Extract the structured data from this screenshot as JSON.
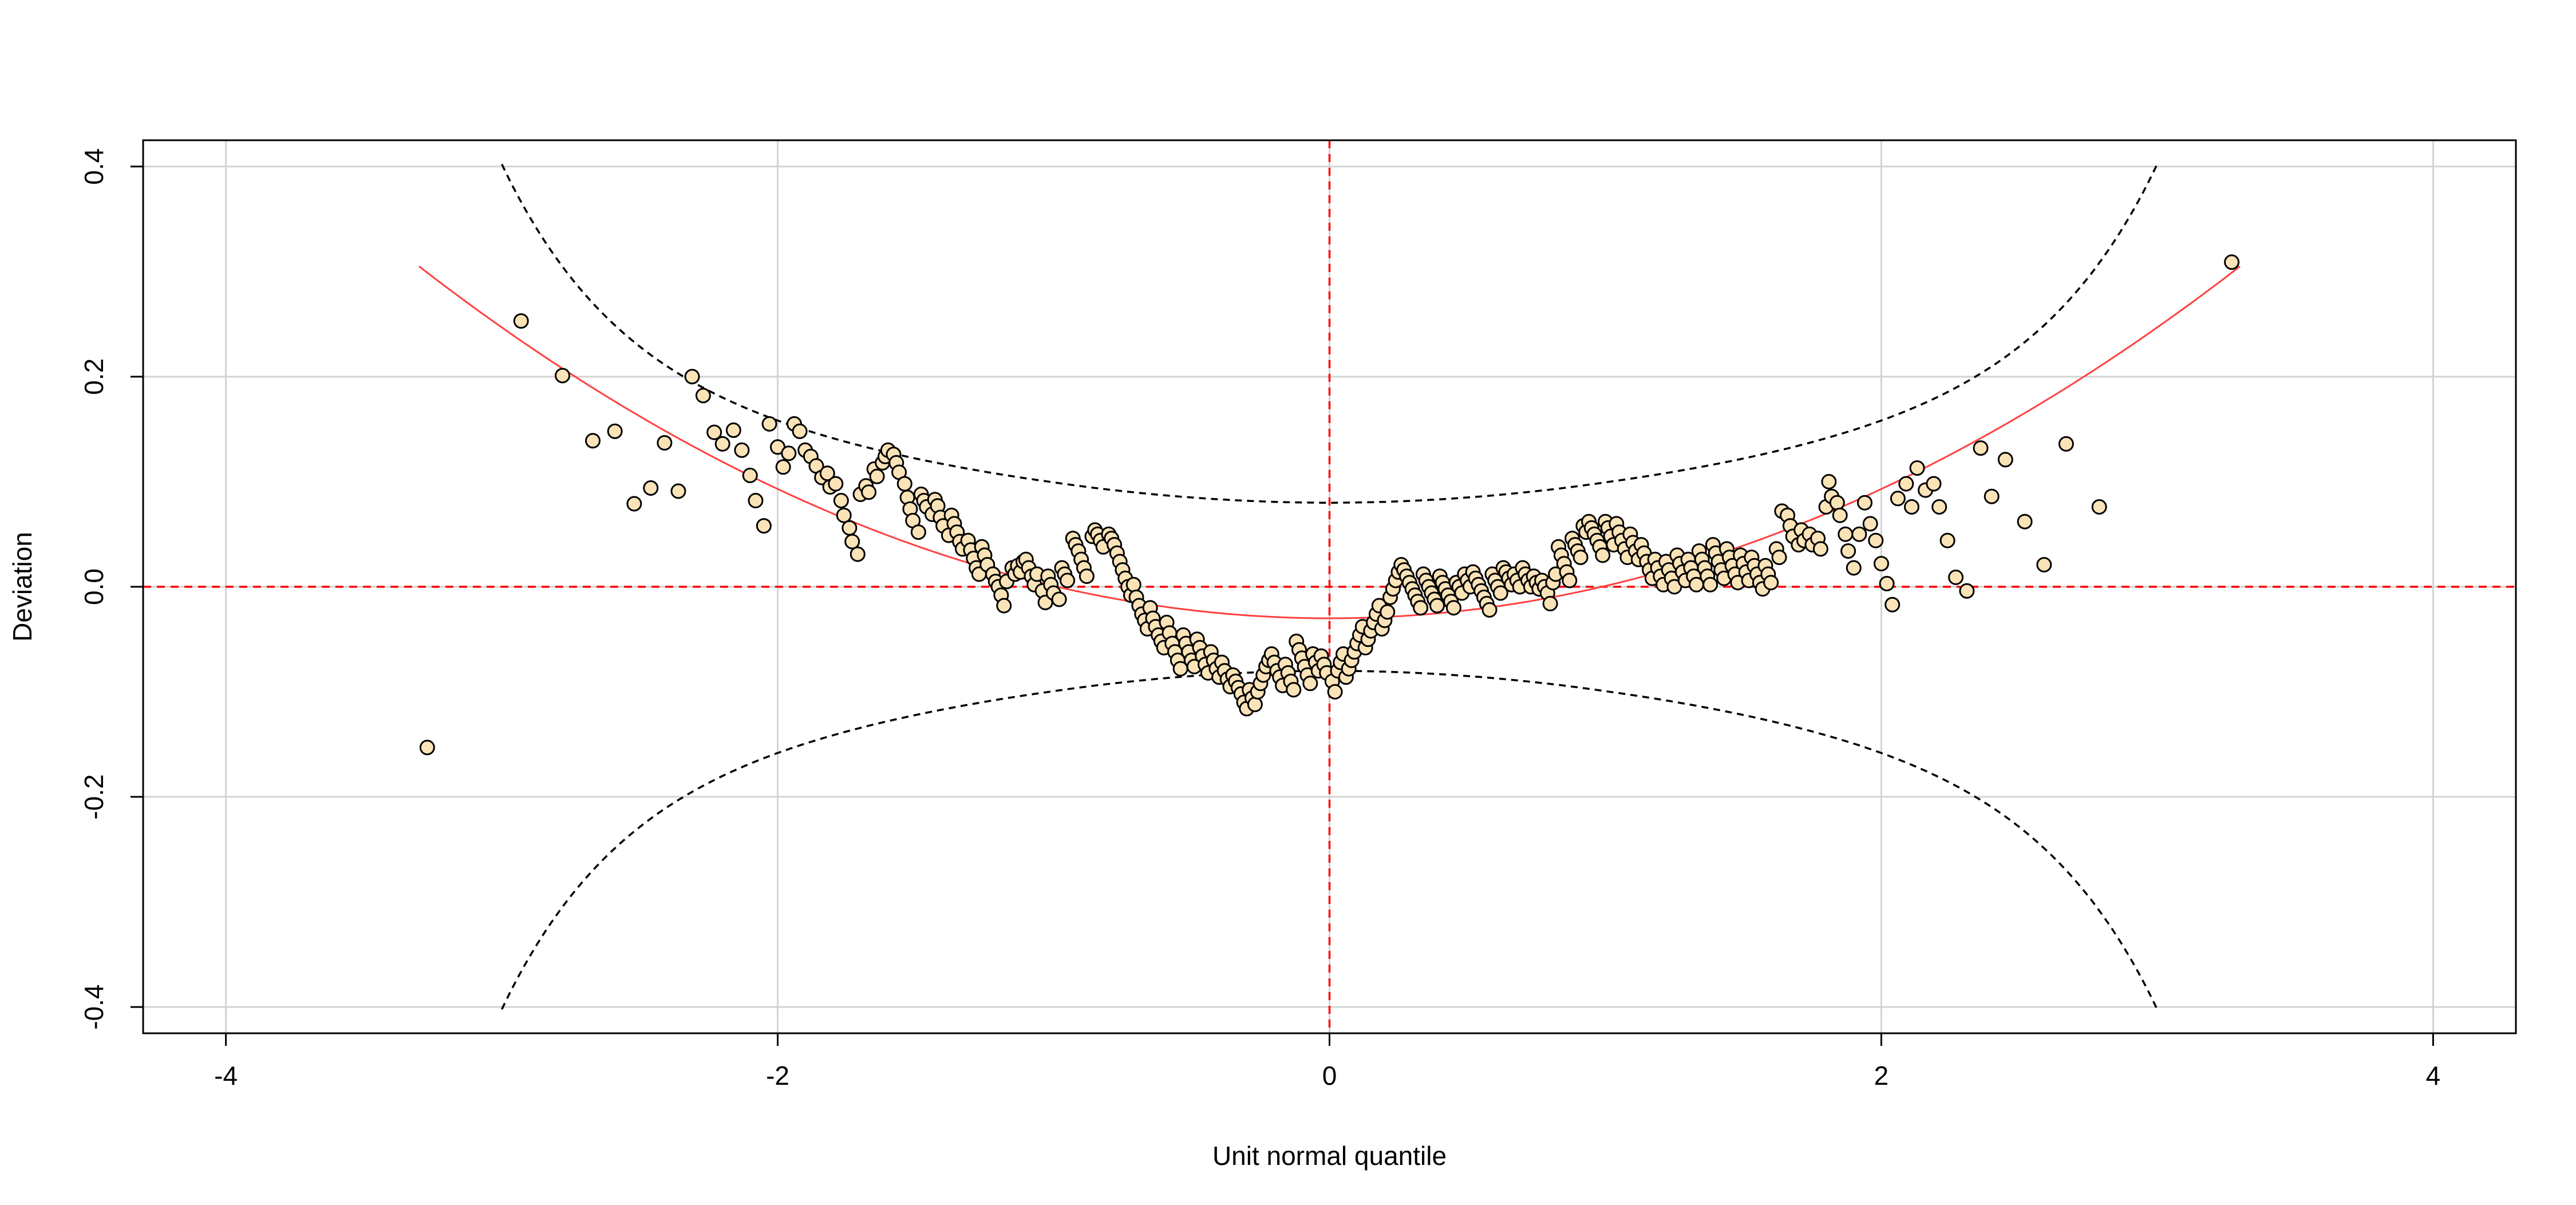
{
  "chart_data": {
    "type": "scatter",
    "title": "",
    "xlabel": "Unit normal quantile",
    "ylabel": "Deviation",
    "xlim": [
      -4.3,
      4.3
    ],
    "ylim": [
      -0.425,
      0.425
    ],
    "x_ticks": [
      -4,
      -2,
      0,
      2,
      4
    ],
    "x_tick_labels": [
      "-4",
      "-2",
      "0",
      "2",
      "4"
    ],
    "y_ticks": [
      -0.4,
      -0.2,
      0.0,
      0.2,
      0.4
    ],
    "y_tick_labels": [
      "-0.4",
      "-0.2",
      "0.0",
      "0.2",
      "0.4"
    ],
    "grid": true,
    "reference_lines": {
      "x": 0,
      "y": 0,
      "color": "#ff0000",
      "style": "dashed"
    },
    "fitted_curve": {
      "color": "#ff4040",
      "x_range": [
        -3.3,
        3.3
      ],
      "vertex": [
        0,
        -0.03
      ],
      "end_value": 0.305
    },
    "confidence_bands": {
      "color": "#000000",
      "style": "dashed",
      "center_halfwidth": 0.08
    },
    "point_style": {
      "fill": "#fbe3b8",
      "stroke": "#000000"
    },
    "points": [
      [
        -3.27,
        -0.153
      ],
      [
        -2.93,
        0.253
      ],
      [
        -2.78,
        0.201
      ],
      [
        -2.67,
        0.139
      ],
      [
        -2.59,
        0.148
      ],
      [
        -2.52,
        0.079
      ],
      [
        -2.46,
        0.094
      ],
      [
        -2.41,
        0.137
      ],
      [
        -2.36,
        0.091
      ],
      [
        -2.31,
        0.2
      ],
      [
        -2.27,
        0.182
      ],
      [
        -2.23,
        0.147
      ],
      [
        -2.2,
        0.136
      ],
      [
        -2.16,
        0.149
      ],
      [
        -2.13,
        0.13
      ],
      [
        -2.1,
        0.106
      ],
      [
        -2.08,
        0.082
      ],
      [
        -2.05,
        0.058
      ],
      [
        -2.03,
        0.155
      ],
      [
        -2.0,
        0.133
      ],
      [
        -1.98,
        0.114
      ],
      [
        -1.96,
        0.127
      ],
      [
        -1.94,
        0.155
      ],
      [
        -1.92,
        0.148
      ],
      [
        -1.9,
        0.13
      ],
      [
        -1.88,
        0.124
      ],
      [
        -1.86,
        0.115
      ],
      [
        -1.84,
        0.104
      ],
      [
        -1.82,
        0.108
      ],
      [
        -1.81,
        0.095
      ],
      [
        -1.79,
        0.098
      ],
      [
        -1.77,
        0.082
      ],
      [
        -1.76,
        0.068
      ],
      [
        -1.74,
        0.056
      ],
      [
        -1.73,
        0.043
      ],
      [
        -1.71,
        0.031
      ],
      [
        -1.7,
        0.088
      ],
      [
        -1.68,
        0.096
      ],
      [
        -1.67,
        0.09
      ],
      [
        -1.65,
        0.112
      ],
      [
        -1.64,
        0.105
      ],
      [
        -1.62,
        0.118
      ],
      [
        -1.61,
        0.124
      ],
      [
        -1.6,
        0.13
      ],
      [
        -1.58,
        0.126
      ],
      [
        -1.57,
        0.118
      ],
      [
        -1.56,
        0.109
      ],
      [
        -1.54,
        0.098
      ],
      [
        -1.53,
        0.085
      ],
      [
        -1.52,
        0.074
      ],
      [
        -1.51,
        0.063
      ],
      [
        -1.49,
        0.052
      ],
      [
        -1.48,
        0.088
      ],
      [
        -1.47,
        0.082
      ],
      [
        -1.46,
        0.076
      ],
      [
        -1.44,
        0.069
      ],
      [
        -1.43,
        0.083
      ],
      [
        -1.42,
        0.077
      ],
      [
        -1.41,
        0.066
      ],
      [
        -1.4,
        0.058
      ],
      [
        -1.38,
        0.049
      ],
      [
        -1.37,
        0.068
      ],
      [
        -1.36,
        0.06
      ],
      [
        -1.35,
        0.052
      ],
      [
        -1.34,
        0.043
      ],
      [
        -1.33,
        0.036
      ],
      [
        -1.31,
        0.044
      ],
      [
        -1.3,
        0.035
      ],
      [
        -1.29,
        0.027
      ],
      [
        -1.28,
        0.018
      ],
      [
        -1.27,
        0.012
      ],
      [
        -1.26,
        0.038
      ],
      [
        -1.25,
        0.03
      ],
      [
        -1.24,
        0.021
      ],
      [
        -1.22,
        0.012
      ],
      [
        -1.21,
        0.005
      ],
      [
        -1.2,
        0.0
      ],
      [
        -1.19,
        -0.008
      ],
      [
        -1.18,
        -0.018
      ],
      [
        -1.17,
        0.005
      ],
      [
        -1.15,
        0.018
      ],
      [
        -1.14,
        0.012
      ],
      [
        -1.13,
        0.02
      ],
      [
        -1.12,
        0.014
      ],
      [
        -1.11,
        0.024
      ],
      [
        -1.1,
        0.026
      ],
      [
        -1.09,
        0.018
      ],
      [
        -1.08,
        0.01
      ],
      [
        -1.07,
        0.002
      ],
      [
        -1.06,
        0.012
      ],
      [
        -1.04,
        -0.004
      ],
      [
        -1.03,
        -0.015
      ],
      [
        -1.02,
        0.01
      ],
      [
        -1.01,
        0.002
      ],
      [
        -1.0,
        -0.006
      ],
      [
        -0.98,
        -0.012
      ],
      [
        -0.97,
        0.018
      ],
      [
        -0.96,
        0.012
      ],
      [
        -0.95,
        0.006
      ],
      [
        -0.93,
        0.046
      ],
      [
        -0.92,
        0.04
      ],
      [
        -0.91,
        0.034
      ],
      [
        -0.9,
        0.026
      ],
      [
        -0.89,
        0.018
      ],
      [
        -0.88,
        0.01
      ],
      [
        -0.86,
        0.048
      ],
      [
        -0.85,
        0.054
      ],
      [
        -0.84,
        0.05
      ],
      [
        -0.83,
        0.044
      ],
      [
        -0.82,
        0.038
      ],
      [
        -0.8,
        0.05
      ],
      [
        -0.79,
        0.046
      ],
      [
        -0.78,
        0.04
      ],
      [
        -0.77,
        0.032
      ],
      [
        -0.76,
        0.024
      ],
      [
        -0.75,
        0.016
      ],
      [
        -0.74,
        0.008
      ],
      [
        -0.73,
        0.0
      ],
      [
        -0.72,
        -0.008
      ],
      [
        -0.71,
        0.002
      ],
      [
        -0.7,
        -0.01
      ],
      [
        -0.69,
        -0.018
      ],
      [
        -0.68,
        -0.026
      ],
      [
        -0.67,
        -0.032
      ],
      [
        -0.66,
        -0.04
      ],
      [
        -0.65,
        -0.02
      ],
      [
        -0.64,
        -0.03
      ],
      [
        -0.63,
        -0.038
      ],
      [
        -0.62,
        -0.046
      ],
      [
        -0.61,
        -0.052
      ],
      [
        -0.6,
        -0.058
      ],
      [
        -0.59,
        -0.034
      ],
      [
        -0.58,
        -0.044
      ],
      [
        -0.57,
        -0.054
      ],
      [
        -0.56,
        -0.062
      ],
      [
        -0.55,
        -0.07
      ],
      [
        -0.54,
        -0.078
      ],
      [
        -0.53,
        -0.046
      ],
      [
        -0.52,
        -0.054
      ],
      [
        -0.51,
        -0.062
      ],
      [
        -0.5,
        -0.07
      ],
      [
        -0.49,
        -0.076
      ],
      [
        -0.48,
        -0.05
      ],
      [
        -0.47,
        -0.058
      ],
      [
        -0.46,
        -0.066
      ],
      [
        -0.45,
        -0.074
      ],
      [
        -0.44,
        -0.082
      ],
      [
        -0.43,
        -0.062
      ],
      [
        -0.42,
        -0.07
      ],
      [
        -0.41,
        -0.078
      ],
      [
        -0.4,
        -0.086
      ],
      [
        -0.39,
        -0.072
      ],
      [
        -0.38,
        -0.08
      ],
      [
        -0.37,
        -0.088
      ],
      [
        -0.36,
        -0.095
      ],
      [
        -0.35,
        -0.084
      ],
      [
        -0.34,
        -0.09
      ],
      [
        -0.33,
        -0.096
      ],
      [
        -0.32,
        -0.102
      ],
      [
        -0.31,
        -0.11
      ],
      [
        -0.3,
        -0.116
      ],
      [
        -0.29,
        -0.098
      ],
      [
        -0.28,
        -0.106
      ],
      [
        -0.27,
        -0.112
      ],
      [
        -0.26,
        -0.1
      ],
      [
        -0.25,
        -0.092
      ],
      [
        -0.24,
        -0.084
      ],
      [
        -0.23,
        -0.076
      ],
      [
        -0.22,
        -0.07
      ],
      [
        -0.21,
        -0.064
      ],
      [
        -0.2,
        -0.072
      ],
      [
        -0.19,
        -0.08
      ],
      [
        -0.18,
        -0.086
      ],
      [
        -0.17,
        -0.094
      ],
      [
        -0.16,
        -0.074
      ],
      [
        -0.15,
        -0.082
      ],
      [
        -0.14,
        -0.09
      ],
      [
        -0.13,
        -0.098
      ],
      [
        -0.12,
        -0.052
      ],
      [
        -0.11,
        -0.06
      ],
      [
        -0.1,
        -0.068
      ],
      [
        -0.09,
        -0.076
      ],
      [
        -0.08,
        -0.084
      ],
      [
        -0.07,
        -0.092
      ],
      [
        -0.06,
        -0.064
      ],
      [
        -0.05,
        -0.072
      ],
      [
        -0.04,
        -0.08
      ],
      [
        -0.03,
        -0.066
      ],
      [
        -0.02,
        -0.074
      ],
      [
        -0.01,
        -0.082
      ],
      [
        0.01,
        -0.09
      ],
      [
        0.02,
        -0.1
      ],
      [
        0.03,
        -0.08
      ],
      [
        0.04,
        -0.072
      ],
      [
        0.05,
        -0.064
      ],
      [
        0.06,
        -0.086
      ],
      [
        0.07,
        -0.078
      ],
      [
        0.08,
        -0.07
      ],
      [
        0.09,
        -0.062
      ],
      [
        0.1,
        -0.054
      ],
      [
        0.11,
        -0.046
      ],
      [
        0.12,
        -0.038
      ],
      [
        0.13,
        -0.058
      ],
      [
        0.14,
        -0.05
      ],
      [
        0.15,
        -0.042
      ],
      [
        0.16,
        -0.034
      ],
      [
        0.17,
        -0.026
      ],
      [
        0.18,
        -0.018
      ],
      [
        0.19,
        -0.04
      ],
      [
        0.2,
        -0.032
      ],
      [
        0.21,
        -0.024
      ],
      [
        0.22,
        -0.01
      ],
      [
        0.23,
        -0.002
      ],
      [
        0.24,
        0.006
      ],
      [
        0.25,
        0.014
      ],
      [
        0.26,
        0.021
      ],
      [
        0.27,
        0.016
      ],
      [
        0.28,
        0.01
      ],
      [
        0.29,
        0.004
      ],
      [
        0.3,
        -0.002
      ],
      [
        0.31,
        -0.008
      ],
      [
        0.32,
        -0.014
      ],
      [
        0.33,
        -0.02
      ],
      [
        0.34,
        0.012
      ],
      [
        0.35,
        0.006
      ],
      [
        0.36,
        0.0
      ],
      [
        0.37,
        -0.006
      ],
      [
        0.38,
        -0.012
      ],
      [
        0.39,
        -0.018
      ],
      [
        0.4,
        0.01
      ],
      [
        0.41,
        0.004
      ],
      [
        0.42,
        -0.002
      ],
      [
        0.43,
        -0.008
      ],
      [
        0.44,
        -0.014
      ],
      [
        0.45,
        -0.02
      ],
      [
        0.46,
        0.004
      ],
      [
        0.47,
        0.0
      ],
      [
        0.48,
        -0.006
      ],
      [
        0.49,
        0.012
      ],
      [
        0.5,
        0.006
      ],
      [
        0.51,
        0.0
      ],
      [
        0.52,
        0.014
      ],
      [
        0.53,
        0.008
      ],
      [
        0.54,
        0.002
      ],
      [
        0.55,
        -0.004
      ],
      [
        0.56,
        -0.01
      ],
      [
        0.57,
        -0.016
      ],
      [
        0.58,
        -0.022
      ],
      [
        0.59,
        0.012
      ],
      [
        0.6,
        0.006
      ],
      [
        0.61,
        0.0
      ],
      [
        0.62,
        -0.006
      ],
      [
        0.63,
        0.018
      ],
      [
        0.64,
        0.014
      ],
      [
        0.65,
        0.008
      ],
      [
        0.66,
        0.002
      ],
      [
        0.67,
        0.012
      ],
      [
        0.68,
        0.006
      ],
      [
        0.69,
        0.0
      ],
      [
        0.7,
        0.018
      ],
      [
        0.71,
        0.012
      ],
      [
        0.72,
        0.006
      ],
      [
        0.73,
        0.0
      ],
      [
        0.74,
        0.01
      ],
      [
        0.75,
        0.004
      ],
      [
        0.76,
        -0.002
      ],
      [
        0.77,
        0.006
      ],
      [
        0.78,
        0.0
      ],
      [
        0.79,
        -0.006
      ],
      [
        0.8,
        -0.016
      ],
      [
        0.81,
        0.004
      ],
      [
        0.82,
        0.012
      ],
      [
        0.83,
        0.038
      ],
      [
        0.84,
        0.03
      ],
      [
        0.85,
        0.022
      ],
      [
        0.86,
        0.014
      ],
      [
        0.87,
        0.006
      ],
      [
        0.88,
        0.046
      ],
      [
        0.89,
        0.04
      ],
      [
        0.9,
        0.034
      ],
      [
        0.91,
        0.028
      ],
      [
        0.92,
        0.058
      ],
      [
        0.93,
        0.052
      ],
      [
        0.94,
        0.062
      ],
      [
        0.95,
        0.056
      ],
      [
        0.96,
        0.05
      ],
      [
        0.97,
        0.044
      ],
      [
        0.98,
        0.038
      ],
      [
        0.99,
        0.03
      ],
      [
        1.0,
        0.062
      ],
      [
        1.01,
        0.056
      ],
      [
        1.02,
        0.048
      ],
      [
        1.03,
        0.04
      ],
      [
        1.04,
        0.06
      ],
      [
        1.05,
        0.052
      ],
      [
        1.06,
        0.044
      ],
      [
        1.07,
        0.036
      ],
      [
        1.08,
        0.028
      ],
      [
        1.09,
        0.05
      ],
      [
        1.1,
        0.042
      ],
      [
        1.11,
        0.034
      ],
      [
        1.12,
        0.026
      ],
      [
        1.13,
        0.04
      ],
      [
        1.14,
        0.032
      ],
      [
        1.15,
        0.024
      ],
      [
        1.16,
        0.016
      ],
      [
        1.17,
        0.008
      ],
      [
        1.18,
        0.026
      ],
      [
        1.19,
        0.018
      ],
      [
        1.2,
        0.01
      ],
      [
        1.21,
        0.002
      ],
      [
        1.22,
        0.024
      ],
      [
        1.23,
        0.016
      ],
      [
        1.24,
        0.008
      ],
      [
        1.25,
        0.0
      ],
      [
        1.26,
        0.03
      ],
      [
        1.27,
        0.022
      ],
      [
        1.28,
        0.014
      ],
      [
        1.29,
        0.006
      ],
      [
        1.3,
        0.026
      ],
      [
        1.31,
        0.018
      ],
      [
        1.32,
        0.01
      ],
      [
        1.33,
        0.002
      ],
      [
        1.34,
        0.034
      ],
      [
        1.35,
        0.026
      ],
      [
        1.36,
        0.018
      ],
      [
        1.37,
        0.01
      ],
      [
        1.38,
        0.002
      ],
      [
        1.39,
        0.04
      ],
      [
        1.4,
        0.032
      ],
      [
        1.41,
        0.024
      ],
      [
        1.42,
        0.016
      ],
      [
        1.43,
        0.008
      ],
      [
        1.44,
        0.036
      ],
      [
        1.45,
        0.028
      ],
      [
        1.46,
        0.02
      ],
      [
        1.47,
        0.012
      ],
      [
        1.48,
        0.004
      ],
      [
        1.49,
        0.03
      ],
      [
        1.5,
        0.022
      ],
      [
        1.51,
        0.014
      ],
      [
        1.52,
        0.006
      ],
      [
        1.53,
        0.028
      ],
      [
        1.54,
        0.02
      ],
      [
        1.55,
        0.012
      ],
      [
        1.56,
        0.004
      ],
      [
        1.57,
        -0.002
      ],
      [
        1.58,
        0.02
      ],
      [
        1.59,
        0.012
      ],
      [
        1.6,
        0.004
      ],
      [
        1.62,
        0.036
      ],
      [
        1.63,
        0.028
      ],
      [
        1.64,
        0.072
      ],
      [
        1.66,
        0.068
      ],
      [
        1.67,
        0.058
      ],
      [
        1.68,
        0.048
      ],
      [
        1.7,
        0.04
      ],
      [
        1.71,
        0.054
      ],
      [
        1.72,
        0.044
      ],
      [
        1.74,
        0.05
      ],
      [
        1.75,
        0.04
      ],
      [
        1.77,
        0.046
      ],
      [
        1.78,
        0.036
      ],
      [
        1.8,
        0.076
      ],
      [
        1.81,
        0.1
      ],
      [
        1.82,
        0.086
      ],
      [
        1.84,
        0.08
      ],
      [
        1.85,
        0.068
      ],
      [
        1.87,
        0.05
      ],
      [
        1.88,
        0.034
      ],
      [
        1.9,
        0.018
      ],
      [
        1.92,
        0.05
      ],
      [
        1.94,
        0.08
      ],
      [
        1.96,
        0.06
      ],
      [
        1.98,
        0.044
      ],
      [
        2.0,
        0.022
      ],
      [
        2.02,
        0.003
      ],
      [
        2.04,
        -0.017
      ],
      [
        2.06,
        0.084
      ],
      [
        2.09,
        0.098
      ],
      [
        2.11,
        0.076
      ],
      [
        2.13,
        0.113
      ],
      [
        2.16,
        0.092
      ],
      [
        2.19,
        0.098
      ],
      [
        2.21,
        0.076
      ],
      [
        2.24,
        0.044
      ],
      [
        2.27,
        0.009
      ],
      [
        2.31,
        -0.004
      ],
      [
        2.36,
        0.132
      ],
      [
        2.4,
        0.086
      ],
      [
        2.45,
        0.121
      ],
      [
        2.52,
        0.062
      ],
      [
        2.59,
        0.021
      ],
      [
        2.67,
        0.136
      ],
      [
        2.79,
        0.076
      ],
      [
        3.27,
        0.309
      ]
    ]
  }
}
